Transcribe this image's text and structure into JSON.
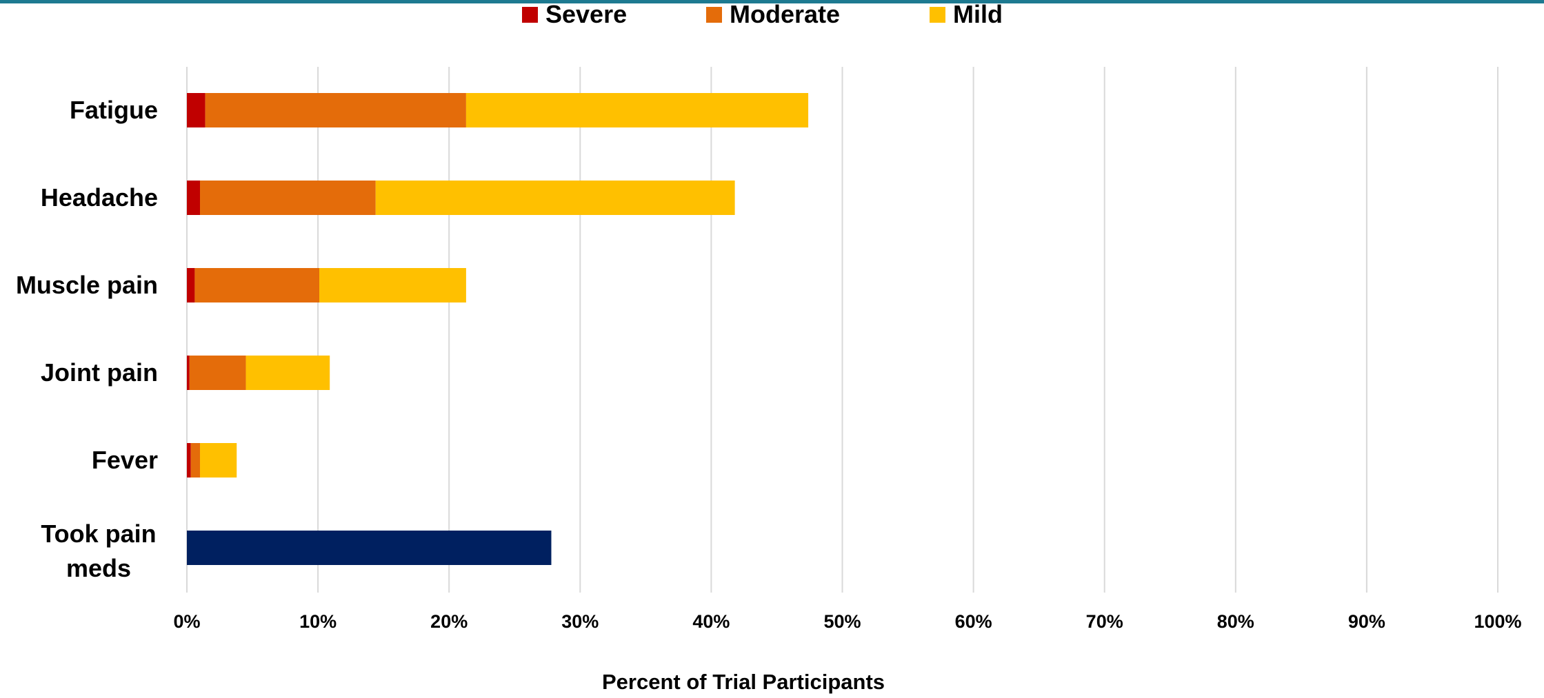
{
  "chart_data": {
    "type": "bar",
    "orientation": "horizontal",
    "stacked": true,
    "title": "",
    "xlabel": "Percent of Trial Participants",
    "ylabel": "",
    "xlim": [
      0,
      100
    ],
    "x_ticks": [
      "0%",
      "10%",
      "20%",
      "30%",
      "40%",
      "50%",
      "60%",
      "70%",
      "80%",
      "90%",
      "100%"
    ],
    "grid": true,
    "legend": {
      "placement": "top",
      "entries": [
        "Severe",
        "Moderate",
        "Mild"
      ]
    },
    "categories": [
      "Fatigue",
      "Headache",
      "Muscle pain",
      "Joint pain",
      "Fever",
      "Took pain meds"
    ],
    "series": [
      {
        "name": "Severe",
        "color": "#c00000",
        "values": [
          1.4,
          1.0,
          0.6,
          0.2,
          0.3,
          null
        ]
      },
      {
        "name": "Moderate",
        "color": "#e46c0a",
        "values": [
          19.9,
          13.4,
          9.5,
          4.3,
          0.7,
          null
        ]
      },
      {
        "name": "Mild",
        "color": "#ffc000",
        "values": [
          26.1,
          27.4,
          11.2,
          6.4,
          2.8,
          null
        ]
      },
      {
        "color": "#002060",
        "values": [
          null,
          null,
          null,
          null,
          null,
          27.8
        ]
      }
    ]
  }
}
